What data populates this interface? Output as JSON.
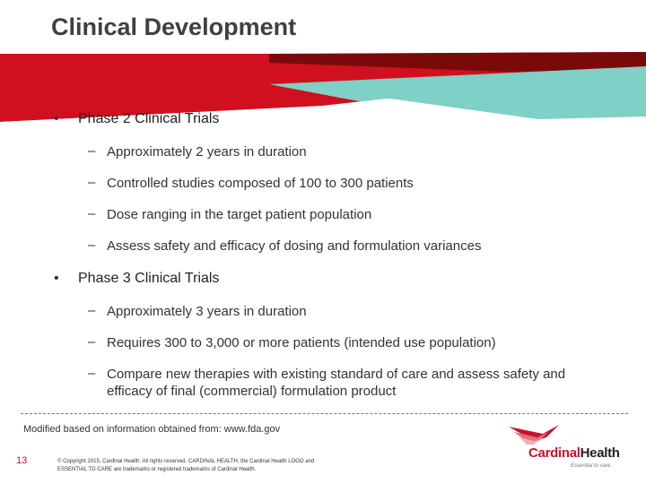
{
  "slide": {
    "title": "Clinical Development",
    "bullets": [
      {
        "label": "Phase 2 Clinical Trials",
        "items": [
          "Approximately 2 years in duration",
          "Controlled studies composed of 100 to 300 patients",
          "Dose ranging in the target patient population",
          "Assess safety and efficacy of dosing and formulation variances"
        ]
      },
      {
        "label": "Phase 3 Clinical Trials",
        "items": [
          "Approximately 3 years in duration",
          "Requires 300 to 3,000 or more patients (intended use population)",
          "Compare new therapies with existing standard of care and assess safety and",
          "efficacy of final (commercial) formulation product"
        ]
      }
    ],
    "bullet_char": "•",
    "dash_char": "–"
  },
  "footer": {
    "source": "Modified based on information obtained from: www.fda.gov",
    "page_number": "13",
    "copyright_line1": "© Copyright 2015, Cardinal Health. All rights reserved. CARDINAL HEALTH, the Cardinal Health LOGO and",
    "copyright_line2": "ESSENTIAL TO CARE are trademarks or registered trademarks of Cardinal Health.",
    "logo_name_part1": "Cardinal",
    "logo_name_part2": "Health",
    "logo_tagline": "Essential to care"
  },
  "colors": {
    "banner_dark_red": "#7a0a0a",
    "banner_red": "#d0101e",
    "banner_teal": "#7fd0c6",
    "brand_red": "#c8102e"
  }
}
